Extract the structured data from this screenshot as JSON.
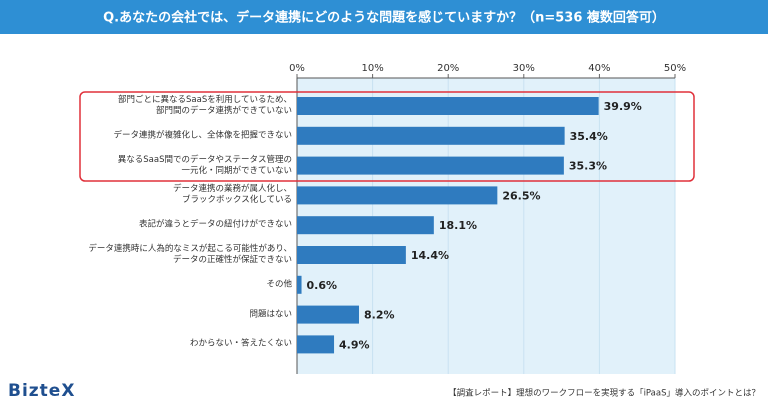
{
  "chart_data": {
    "type": "bar",
    "orientation": "horizontal",
    "title": "Q.あなたの会社では、データ連携にどのような問題を感じていますか？（n=536 複数回答可）",
    "categories": [
      "部門ごとに異なるSaaSを利用しているため、\n部門間のデータ連携ができていない",
      "データ連携が複雑化し、全体像を把握できない",
      "異なるSaaS間でのデータやステータス管理の\n一元化・同期ができていない",
      "データ連携の業務が属人化し、\nブラックボックス化している",
      "表記が違うとデータの紐付けができない",
      "データ連携時に人為的なミスが起こる可能性があり、\nデータの正確性が保証できない",
      "その他",
      "問題はない",
      "わからない・答えたくない"
    ],
    "values": [
      39.9,
      35.4,
      35.3,
      26.5,
      18.1,
      14.4,
      0.6,
      8.2,
      4.9
    ],
    "value_labels": [
      "39.9%",
      "35.4%",
      "35.3%",
      "26.5%",
      "18.1%",
      "14.4%",
      "0.6%",
      "8.2%",
      "4.9%"
    ],
    "color": "#2f7bbf",
    "xlim": [
      0,
      50
    ],
    "xticks": [
      {
        "value": 0,
        "label": "0%"
      },
      {
        "value": 10,
        "label": "10%"
      },
      {
        "value": 20,
        "label": "20%"
      },
      {
        "value": 30,
        "label": "30%"
      },
      {
        "value": 40,
        "label": "40%"
      },
      {
        "value": 50,
        "label": "50%"
      }
    ],
    "grid": true
  },
  "logo": "BizteX",
  "footer": "【調査レポート】理想のワークフローを実現する「iPaaS」導入のポイントとは？"
}
